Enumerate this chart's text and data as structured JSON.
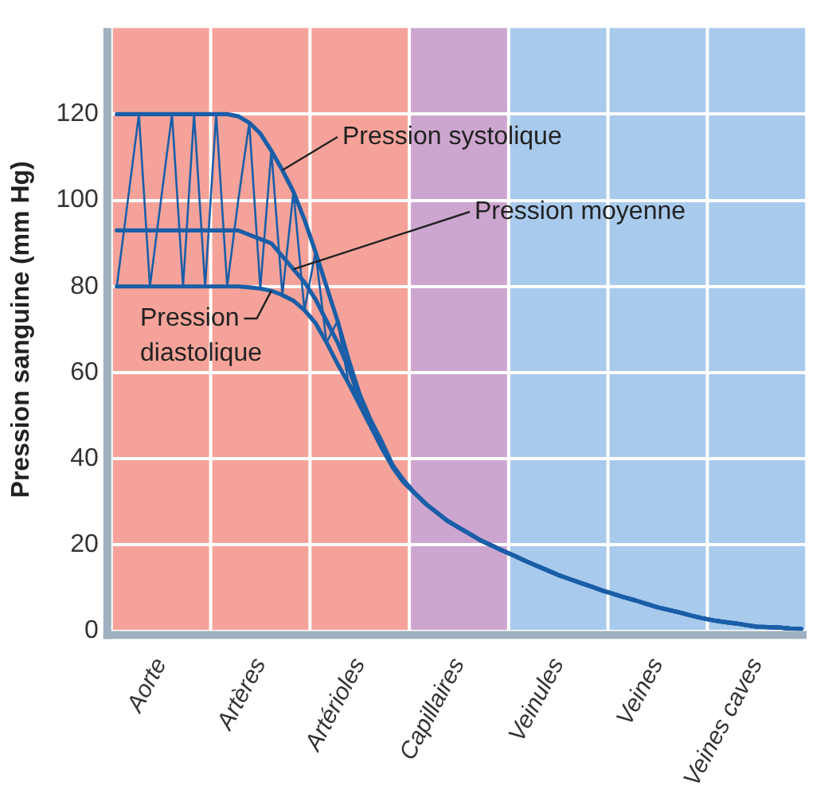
{
  "chart_data": {
    "type": "line",
    "ylabel": "Pression sanguine (mm Hg)",
    "categories": [
      null,
      null,
      null,
      null,
      "Aorte",
      null,
      null,
      null,
      null,
      null,
      null,
      null,
      null,
      "Artères",
      null,
      null,
      null,
      null,
      null,
      null,
      null,
      null,
      "Artérioles",
      null,
      null,
      null,
      null,
      null,
      null,
      null,
      null,
      "Capillaires",
      null,
      null,
      null,
      null,
      null,
      null,
      null,
      null,
      "Veinules",
      null,
      null,
      null,
      null,
      null,
      null,
      null,
      null,
      "Veines",
      null,
      null,
      null,
      null,
      null,
      null,
      null,
      null,
      "Veines caves",
      null,
      null,
      null,
      null
    ],
    "ylim": [
      0,
      140
    ],
    "yticks": [
      0,
      20,
      40,
      60,
      80,
      100,
      120
    ],
    "grid": true,
    "marker": "none",
    "series": [
      {
        "name": "Pression systolique",
        "color": "#1a5ea8",
        "values": [
          120,
          120,
          120,
          120,
          120,
          120,
          120,
          120,
          120,
          120,
          120,
          119.5,
          118,
          115.5,
          111.5,
          107,
          102,
          95.5,
          88,
          80,
          72,
          63,
          55,
          49,
          44,
          38.5,
          35,
          32,
          29.5,
          27.5,
          25.5,
          24,
          22.5,
          21,
          19.8,
          18.6,
          17.5,
          16.3,
          15.2,
          14.1,
          13,
          12.1,
          11.2,
          10.3,
          9.4,
          8.6,
          7.8,
          7.1,
          6.3,
          5.5,
          4.9,
          4.3,
          3.6,
          3,
          2.5,
          2.1,
          1.8,
          1.4,
          1,
          0.9,
          0.8,
          0.6,
          0.5
        ]
      },
      {
        "name": "Pression moyenne",
        "color": "#1a5ea8",
        "values": [
          93,
          93,
          93,
          93,
          93,
          93,
          93,
          93,
          93,
          93,
          93,
          93,
          92,
          91,
          90,
          87,
          84,
          81,
          77,
          72,
          67,
          61,
          54,
          48,
          43,
          38,
          34.5,
          32,
          29.5,
          27.5,
          25.5,
          24,
          22.5,
          21,
          19.8,
          18.6,
          17.5,
          16.3,
          15.2,
          14.1,
          13,
          12.1,
          11.2,
          10.3,
          9.4,
          8.6,
          7.8,
          7.1,
          6.3,
          5.5,
          4.9,
          4.3,
          3.6,
          3,
          2.5,
          2.1,
          1.8,
          1.4,
          1,
          0.9,
          0.8,
          0.6,
          0.5
        ]
      },
      {
        "name": "Pression diastolique",
        "color": "#1a5ea8",
        "values": [
          80,
          80,
          80,
          80,
          80,
          80,
          80,
          80,
          80,
          80,
          80,
          80,
          79.8,
          79.5,
          79,
          78,
          76.7,
          74.5,
          71.5,
          67,
          62,
          57.5,
          52.5,
          47.5,
          42.5,
          38,
          34.5,
          32,
          29.5,
          27.5,
          25.5,
          24,
          22.5,
          21,
          19.8,
          18.6,
          17.5,
          16.3,
          15.2,
          14.1,
          13,
          12.1,
          11.2,
          10.3,
          9.4,
          8.6,
          7.8,
          7.1,
          6.3,
          5.5,
          4.9,
          4.3,
          3.6,
          3,
          2.5,
          2.1,
          1.8,
          1.4,
          1,
          0.9,
          0.8,
          0.6,
          0.5
        ]
      },
      {
        "color": "#1a5ea8",
        "values": [
          80,
          100,
          120,
          80,
          100,
          120,
          80,
          120,
          80,
          120,
          80,
          100,
          118,
          79.5,
          111.5,
          78,
          102,
          74.5,
          88,
          67,
          72,
          57.5,
          55,
          47.5,
          null,
          null,
          null,
          null,
          null,
          null,
          null,
          null,
          null,
          null,
          null,
          null,
          null,
          null,
          null,
          null,
          null,
          null,
          null,
          null,
          null,
          null,
          null,
          null,
          null,
          null,
          null,
          null,
          null,
          null,
          null,
          null,
          null,
          null,
          null,
          null,
          null,
          null,
          null
        ]
      }
    ]
  }
}
